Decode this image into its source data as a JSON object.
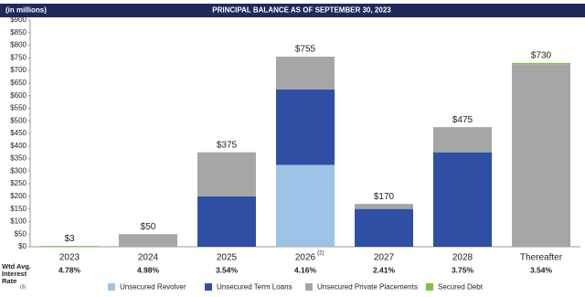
{
  "header": {
    "units": "(in millions)",
    "title": "PRINCIPAL BALANCE AS OF SEPTEMBER 30, 2023"
  },
  "chart_data": {
    "type": "stacked-bar",
    "categories": [
      "2023",
      "2024",
      "2025",
      "2026",
      "2027",
      "2028",
      "Thereafter"
    ],
    "category_footnotes": [
      null,
      null,
      null,
      "(2)",
      null,
      null,
      null
    ],
    "series": [
      {
        "name": "Unsecured Revolver",
        "color": "#9dc3e6",
        "values": [
          0,
          0,
          0,
          325,
          0,
          0,
          0
        ]
      },
      {
        "name": "Unsecured Term Loans",
        "color": "#2e4fa3",
        "values": [
          0,
          0,
          200,
          300,
          150,
          375,
          0
        ]
      },
      {
        "name": "Unsecured Private Placements",
        "color": "#a6a6a6",
        "values": [
          0,
          50,
          175,
          130,
          20,
          100,
          725
        ]
      },
      {
        "name": "Secured Debt",
        "color": "#7dc242",
        "values": [
          3,
          0,
          0,
          0,
          0,
          0,
          5
        ]
      }
    ],
    "totals": [
      3,
      50,
      375,
      755,
      170,
      475,
      730
    ],
    "total_labels": [
      "$3",
      "$50",
      "$375",
      "$755",
      "$170",
      "$475",
      "$730"
    ],
    "ylim": [
      0,
      900
    ],
    "yticks": [
      {
        "value": 0,
        "label": "$0"
      },
      {
        "value": 50,
        "label": "$50"
      },
      {
        "value": 100,
        "label": "$100"
      },
      {
        "value": 150,
        "label": "$150"
      },
      {
        "value": 200,
        "label": "$200"
      },
      {
        "value": 250,
        "label": "$250"
      },
      {
        "value": 300,
        "label": "$300"
      },
      {
        "value": 350,
        "label": "$350"
      },
      {
        "value": 400,
        "label": "$400"
      },
      {
        "value": 450,
        "label": "$450"
      },
      {
        "value": 500,
        "label": "$500"
      },
      {
        "value": 550,
        "label": "$550"
      },
      {
        "value": 600,
        "label": "$600"
      },
      {
        "value": 650,
        "label": "$650"
      },
      {
        "value": 700,
        "label": "$700"
      },
      {
        "value": 750,
        "label": "$750"
      },
      {
        "value": 800,
        "label": "$800"
      },
      {
        "value": 850,
        "label": "$850"
      },
      {
        "value": 900,
        "label": "$900"
      }
    ],
    "grid": false,
    "legend": "bottom"
  },
  "rates": {
    "label_lines": [
      "Wtd Avg.",
      "Interest",
      "Rate"
    ],
    "label_note": "(3)",
    "values": [
      "4.78%",
      "4.98%",
      "3.54%",
      "4.16%",
      "2.41%",
      "3.75%",
      "3.54%"
    ]
  }
}
